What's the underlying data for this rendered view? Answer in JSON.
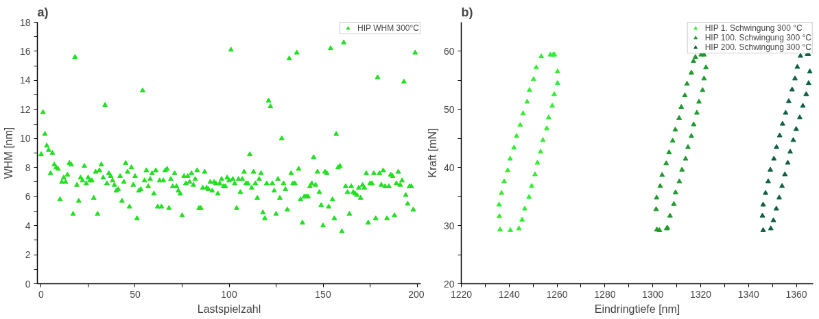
{
  "chart_data": [
    {
      "type": "scatter",
      "title": "a)",
      "xlabel": "Lastspielzahl",
      "ylabel": "WHM [nm]",
      "marker": "triangle",
      "legend": "top right",
      "grid": false,
      "xlim": [
        -2,
        202
      ],
      "ylim": [
        0,
        18
      ],
      "xticks": [
        0,
        {
          "value": 25,
          "label": null
        },
        50,
        {
          "value": 75,
          "label": null
        },
        100,
        {
          "value": 125,
          "label": null
        },
        150,
        {
          "value": 175,
          "label": null
        },
        200
      ],
      "yticks": [
        0,
        {
          "value": 1,
          "label": null
        },
        2,
        {
          "value": 3,
          "label": null
        },
        4,
        {
          "value": 5,
          "label": null
        },
        6,
        {
          "value": 7,
          "label": null
        },
        8,
        {
          "value": 9,
          "label": null
        },
        10,
        {
          "value": 11,
          "label": null
        },
        12,
        {
          "value": 13,
          "label": null
        },
        14,
        {
          "value": 15,
          "label": null
        },
        16,
        {
          "value": 17,
          "label": null
        },
        18
      ],
      "series": [
        {
          "name": "HIP WHM 300°C",
          "color": "#22e022",
          "x": [
            0,
            1,
            2,
            3,
            4,
            5,
            6,
            7,
            8,
            9,
            10,
            11,
            12,
            13,
            14,
            15,
            16,
            17,
            18,
            19,
            20,
            21,
            22,
            23,
            24,
            25,
            26,
            27,
            28,
            29,
            30,
            31,
            32,
            33,
            34,
            35,
            36,
            37,
            38,
            39,
            40,
            41,
            42,
            43,
            44,
            45,
            46,
            47,
            48,
            49,
            50,
            51,
            52,
            53,
            54,
            55,
            56,
            57,
            58,
            59,
            60,
            61,
            62,
            63,
            64,
            65,
            66,
            67,
            68,
            69,
            70,
            71,
            72,
            73,
            74,
            75,
            76,
            77,
            78,
            79,
            80,
            81,
            82,
            83,
            84,
            85,
            86,
            87,
            88,
            89,
            90,
            91,
            92,
            93,
            94,
            95,
            96,
            97,
            98,
            99,
            100,
            101,
            102,
            103,
            104,
            105,
            106,
            107,
            108,
            109,
            110,
            111,
            112,
            113,
            114,
            115,
            116,
            117,
            118,
            119,
            120,
            121,
            122,
            123,
            124,
            125,
            126,
            127,
            128,
            129,
            130,
            131,
            132,
            133,
            134,
            135,
            136,
            137,
            138,
            139,
            140,
            141,
            142,
            143,
            144,
            145,
            146,
            147,
            148,
            149,
            150,
            151,
            152,
            153,
            154,
            155,
            156,
            157,
            158,
            159,
            160,
            161,
            162,
            163,
            164,
            165,
            166,
            167,
            168,
            169,
            170,
            171,
            172,
            173,
            174,
            175,
            176,
            177,
            178,
            179,
            180,
            181,
            182,
            183,
            184,
            185,
            186,
            187,
            188,
            189,
            190,
            191,
            192,
            193,
            194,
            195,
            196,
            197,
            198,
            199
          ],
          "values": [
            8.9,
            11.8,
            10.3,
            9.5,
            9.2,
            7.6,
            9.0,
            8.2,
            8.0,
            7.9,
            5.8,
            7.0,
            7.3,
            7.0,
            7.5,
            8.3,
            8.2,
            4.8,
            15.6,
            6.8,
            5.7,
            7.3,
            7.1,
            8.1,
            6.9,
            7.3,
            7.1,
            7.1,
            5.9,
            7.7,
            4.8,
            7.8,
            8.2,
            7.3,
            12.3,
            6.9,
            7.6,
            7.4,
            7.1,
            6.8,
            6.4,
            6.5,
            7.4,
            5.7,
            7.0,
            8.3,
            7.7,
            5.3,
            8.0,
            6.8,
            7.4,
            4.5,
            6.4,
            6.5,
            13.3,
            7.1,
            7.8,
            6.7,
            7.2,
            7.6,
            6.2,
            7.8,
            5.3,
            7.1,
            5.3,
            7.1,
            7.8,
            7.9,
            5.2,
            7.2,
            6.7,
            7.6,
            6.7,
            6.4,
            6.2,
            4.7,
            7.4,
            6.9,
            7.4,
            7.0,
            7.6,
            6.8,
            7.2,
            7.8,
            5.2,
            5.2,
            6.6,
            7.7,
            6.6,
            6.5,
            7.0,
            6.4,
            7.0,
            6.9,
            6.2,
            6.9,
            7.2,
            6.7,
            6.7,
            7.3,
            7.1,
            16.1,
            7.2,
            6.9,
            5.2,
            7.2,
            6.3,
            7.2,
            7.7,
            6.9,
            6.9,
            8.9,
            6.6,
            7.7,
            6.9,
            5.9,
            7.2,
            7.6,
            4.9,
            4.5,
            6.9,
            12.6,
            12.2,
            6.9,
            6.4,
            4.8,
            7.2,
            5.9,
            10.0,
            6.9,
            6.5,
            5.1,
            15.5,
            7.6,
            6.9,
            6.9,
            15.9,
            7.9,
            5.8,
            4.2,
            6.0,
            6.0,
            6.0,
            6.7,
            6.9,
            8.7,
            6.8,
            7.7,
            6.3,
            5.4,
            4.0,
            7.7,
            7.6,
            5.3,
            16.2,
            5.8,
            4.5,
            10.3,
            8.0,
            8.1,
            3.6,
            16.6,
            6.7,
            6.3,
            4.8,
            6.7,
            6.3,
            6.2,
            6.1,
            6.6,
            5.9,
            6.8,
            6.6,
            7.6,
            4.2,
            6.9,
            6.9,
            7.6,
            4.5,
            14.2,
            7.6,
            6.8,
            7.8,
            6.7,
            4.5,
            6.7,
            7.5,
            7.4,
            4.7,
            6.9,
            7.7,
            6.8,
            7.1,
            13.9,
            6.1,
            5.5,
            6.7,
            6.7,
            5.1,
            15.9
          ]
        }
      ]
    },
    {
      "type": "scatter",
      "title": "b)",
      "xlabel": "Eindringtiefe [nm]",
      "ylabel": "Kraft [mN]",
      "marker": "triangle",
      "legend": "top right",
      "grid": false,
      "xlim": [
        1220,
        1367
      ],
      "ylim": [
        20,
        65
      ],
      "xticks": [
        1220,
        {
          "value": 1230,
          "label": null
        },
        1240,
        {
          "value": 1250,
          "label": null
        },
        1260,
        {
          "value": 1270,
          "label": null
        },
        1280,
        {
          "value": 1290,
          "label": null
        },
        1300,
        {
          "value": 1310,
          "label": null
        },
        1320,
        {
          "value": 1330,
          "label": null
        },
        1340,
        {
          "value": 1350,
          "label": null
        },
        1360
      ],
      "yticks": [
        20,
        {
          "value": 25,
          "label": null
        },
        30,
        {
          "value": 35,
          "label": null
        },
        40,
        {
          "value": 45,
          "label": null
        },
        50,
        {
          "value": 55,
          "label": null
        },
        60
      ],
      "series": [
        {
          "name": "HIP 1. Schwingung 300 °C",
          "color": "#33ee33",
          "x": [
            1236.2,
            1235.9,
            1235.8,
            1236.8,
            1237.9,
            1239.4,
            1240.4,
            1242.0,
            1243.1,
            1244.6,
            1245.8,
            1247.5,
            1248.5,
            1250.2,
            1251.3,
            1253.4,
            1257.2,
            1258.4,
            1258.9,
            1260.2,
            1260.2,
            1258.8,
            1258.0,
            1256.5,
            1255.7,
            1254.1,
            1253.1,
            1251.8,
            1250.8,
            1249.4,
            1248.3,
            1246.5,
            1245.4,
            1244.1,
            1240.5
          ],
          "values": [
            29.3,
            31.6,
            33.6,
            35.6,
            37.6,
            39.5,
            41.5,
            43.4,
            45.4,
            47.3,
            49.3,
            51.3,
            53.3,
            55.2,
            57.2,
            59.1,
            59.4,
            59.4,
            59.4,
            56.5,
            54.5,
            52.6,
            50.6,
            48.6,
            46.7,
            44.7,
            42.7,
            40.8,
            38.8,
            36.8,
            34.9,
            32.9,
            31.0,
            29.5,
            29.2
          ]
        },
        {
          "name": "HIP 100. Schwingung 300 °C",
          "color": "#1f9a2e",
          "x": [
            1301.7,
            1302.8,
            1305.8,
            1306.1,
            1301.4,
            1301.6,
            1303.1,
            1303.9,
            1305.6,
            1306.8,
            1308.3,
            1309.4,
            1311.0,
            1311.9,
            1313.4,
            1314.3,
            1316.1,
            1317.0,
            1317.8,
            1320.2,
            1321.4,
            1322.2,
            1321.4,
            1320.8,
            1319.3,
            1318.4,
            1317.1,
            1316.1,
            1314.7,
            1313.7,
            1312.2,
            1311.1,
            1309.5,
            1308.8,
            1307.2
          ],
          "values": [
            29.3,
            29.2,
            29.5,
            29.6,
            32.8,
            34.8,
            36.8,
            38.7,
            40.7,
            42.6,
            44.6,
            46.5,
            48.5,
            50.4,
            52.4,
            54.4,
            56.3,
            58.3,
            59.0,
            59.4,
            59.4,
            57.2,
            55.3,
            53.3,
            51.3,
            49.4,
            47.4,
            45.4,
            43.5,
            41.5,
            39.6,
            37.6,
            35.7,
            33.7,
            31.7
          ]
        },
        {
          "name": "HIP 200. Schwingung 300 °C",
          "color": "#0e6040",
          "x": [
            1346.1,
            1349.3,
            1350.4,
            1345.8,
            1346.1,
            1347.1,
            1348.2,
            1349.1,
            1350.6,
            1351.7,
            1353.0,
            1354.2,
            1355.5,
            1356.8,
            1358.2,
            1359.4,
            1360.4,
            1361.7,
            1364.6,
            1365.0,
            1365.6,
            1365.1,
            1364.1,
            1362.7,
            1361.4,
            1359.9,
            1358.7,
            1357.4,
            1356.4,
            1355.2,
            1354.0,
            1352.8,
            1351.6
          ],
          "values": [
            29.2,
            29.5,
            30.9,
            31.7,
            33.6,
            35.6,
            37.6,
            39.6,
            41.5,
            43.5,
            45.5,
            47.5,
            49.4,
            51.4,
            53.4,
            55.3,
            57.3,
            59.2,
            59.5,
            59.5,
            56.5,
            54.5,
            52.6,
            50.6,
            48.6,
            46.6,
            44.7,
            42.7,
            40.8,
            38.8,
            36.8,
            34.8,
            32.9
          ]
        }
      ]
    }
  ]
}
